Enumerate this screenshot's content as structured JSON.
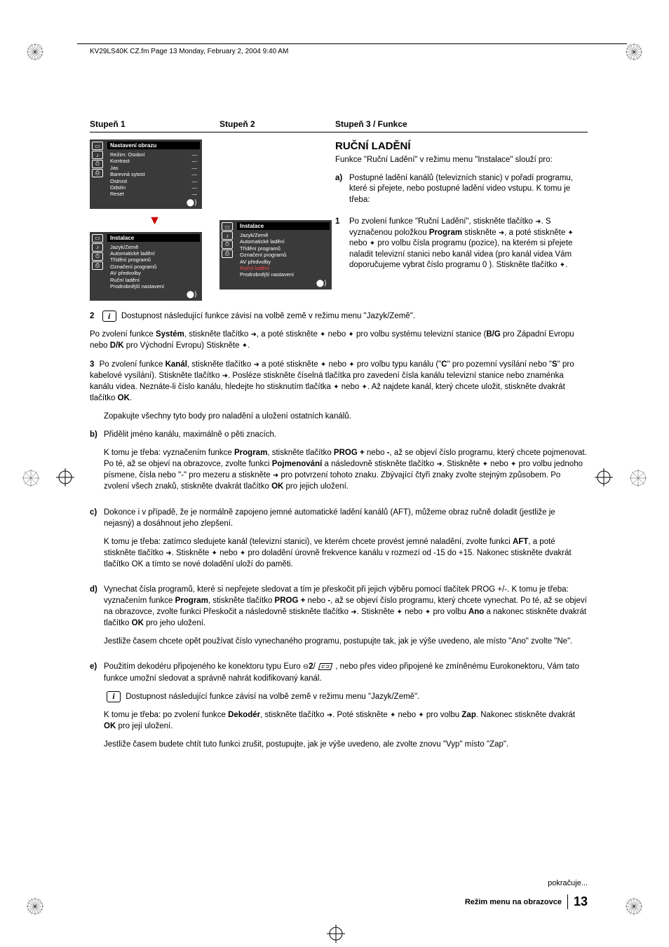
{
  "header_line": "KV29LS40K CZ.fm  Page 13  Monday, February 2, 2004  9:40 AM",
  "columns": {
    "c1": "Stupeň 1",
    "c2": "Stupeň 2",
    "c3": "Stupeň 3 / Funkce"
  },
  "menu1": {
    "title": "Nastavení  obrazu",
    "items": [
      "Režim: Osobní",
      "Kontrast",
      "Jas",
      "Barevná sytost",
      "Ostrost",
      "Odstín",
      "Reset"
    ]
  },
  "menu2": {
    "title": "Instalace",
    "items": [
      "Jazyk/Země",
      "Automatické ladění",
      "Třídění  programů",
      "Označení programů",
      "AV předvolby",
      "Ruční ladění",
      "Prodrobnější nastavení"
    ]
  },
  "menu3": {
    "title": "Instalace",
    "items": [
      "Jazyk/Země",
      "Automatické ladění",
      "Třídění  programů",
      "Označení programů",
      "AV předvolby",
      "Ruční ladění",
      "Prodrobnější nastavení"
    ],
    "highlight_index": 5
  },
  "manual": {
    "heading": "RUČNÍ LADĚNÍ",
    "intro": "Funkce \"Ruční Ladění\" v režimu menu \"Instalace\" slouží pro:",
    "a_label": "a)",
    "a_text": "Postupné ladění kanálů (televizních stanic) v pořadí programu, které si přejete, nebo postupné ladění video vstupu. K tomu je třeba:",
    "step1_label": "1",
    "step1_text_a": "Po zvolení funkce \"Ruční Ladění\", stiskněte tlačítko ",
    "step1_text_b": ". S vyznačenou položkou ",
    "step1_prog": "Program",
    "step1_text_c": " stiskněte ",
    "step1_text_d": ", a poté stiskněte ",
    "step1_text_e": " nebo ",
    "step1_text_f": " pro volbu čísla programu (pozice), na kterém si přejete naladit televizní stanici nebo kanál videa (pro kanál videa Vám doporučujeme vybrat číslo programu 0 ). Stiskněte tlačítko ",
    "step1_text_g": "."
  },
  "step2": {
    "label": "2",
    "text": "Dostupnost následující funkce závisí na volbě země v režimu menu \"Jazyk/Země\"."
  },
  "para_system_a": "Po zvolení funkce ",
  "para_system_b": "Systém",
  "para_system_c": ", stiskněte tlačítko ",
  "para_system_d": ", a poté stiskněte ",
  "para_system_e": " nebo ",
  "para_system_f": " pro volbu systému televizní stanice (",
  "para_system_g": "B/G",
  "para_system_h": " pro Západní Evropu nebo ",
  "para_system_i": "D/K",
  "para_system_j": " pro Východní Evropu) Stiskněte ",
  "para_system_k": ".",
  "step3": {
    "label": "3",
    "a": "Po zvolení funkce ",
    "kanal": "Kanál",
    "b": ", stiskněte tlačítko ",
    "c": " a poté stiskněte ",
    "d": " nebo ",
    "e": " pro volbu typu kanálu (\"",
    "cC": "C",
    "f": "\"  pro pozemní vysílání nebo \"",
    "cS": "S",
    "g": "\" pro kabelové vysílání). Stiskněte tlačítko ",
    "h": ". Posléze stiskněte číselná tlačítka pro zavedení čísla kanálu televizní stanice nebo znaménka kanálu videa. Neznáte-li číslo kanálu, hledejte ho stisknutím tlačítka ",
    "i": " nebo ",
    "j": ". Až najdete kanál, který chcete uložit, stiskněte dvakrát tlačítko ",
    "ok": "OK",
    "k": "."
  },
  "repeat": "Zopakujte všechny tyto body pro naladění a uložení ostatních kanálů.",
  "b": {
    "label": "b)",
    "line1": "Přidělit jméno kanálu, maximálně o pěti znacích.",
    "p2a": "K tomu je třeba: vyznačením funkce ",
    "prog": "Program",
    "p2b": ", stiskněte tlačítko ",
    "progplus": "PROG +",
    "p2c": " nebo ",
    "minus": "-",
    "p2d": ", až se objeví číslo programu, který chcete pojmenovat. Po té, až se objeví na obrazovce, zvolte funkci ",
    "pojmen": "Pojmenování",
    "p2e": " a následovně stiskněte tlačítko ",
    "p2f": ". Stiskněte ",
    "p2g": " nebo ",
    "p2h": " pro volbu jednoho písmene, čísla nebo \"-\" pro mezeru a stiskněte ",
    "p2i": " pro potvrzení tohoto znaku. Zbývající čtyři znaky zvolte stejným způsobem.  Po zvolení všech znaků, stiskněte dvakrát tlačítko ",
    "ok": "OK",
    "p2j": " pro jejich uložení."
  },
  "c": {
    "label": "c)",
    "p1": "Dokonce i v případě, že je normálně zapojeno jemné automatické ladění kanálů (AFT), můžeme obraz ručně doladit (jestliže je nejasný) a dosáhnout jeho zlepšení.",
    "p2a": "K tomu je třeba: zatímco sledujete kanál (televizní stanici), ve kterém chcete provést jemné naladění, zvolte funkci ",
    "aft": "AFT",
    "p2b": ", a poté stiskněte tlačítko ",
    "p2c": ". Stiskněte ",
    "p2d": " nebo ",
    "p2e": " pro doladění úrovně frekvence kanálu v rozmezí od -15 do +15. Nakonec stiskněte dvakrát tlačítko OK a tímto se nové doladění uloží do paměti."
  },
  "d": {
    "label": "d)",
    "p1a": "Vynechat čísla programů, které si nepřejete sledovat a tím je přeskočit při jejich výběru pomocí tlačítek PROG +/-. K tomu je třeba: vyznačením funkce ",
    "prog": "Program",
    "p1b": ", stiskněte tlačítko ",
    "progplus": "PROG +",
    "p1c": " nebo ",
    "minus": "-",
    "p1d": ", až se objeví číslo programu, který chcete vynechat. Po té, až se objeví na obrazovce, zvolte funkci Přeskočit a následovně stiskněte tlačítko ",
    "p1e": ". Stiskněte ",
    "p1f": " nebo ",
    "p1g": " pro volbu ",
    "ano": "Ano",
    "p1h": " a nakonec stiskněte dvakrát tlačítko ",
    "ok": "OK",
    "p1i": " pro jeho uložení.",
    "p2": "Jestliže časem chcete opět používat číslo vynechaného programu, postupujte tak, jak je výše uvedeno, ale místo \"Ano\" zvolte \"Ne\"."
  },
  "e": {
    "label": "e)",
    "p1a": "Použitím dekodéru připojeného ke konektoru typu Euro ",
    "scart2": "2",
    "p1b": "/ ",
    "p1c": " , nebo přes video připojené ke zmíněnému Eurokonektoru, Vám tato funkce umožní sledovat a správně nahrát kodifikovaný kanál.",
    "info": "Dostupnost následující funkce závisí na volbě země v režimu menu \"Jazyk/Země\".",
    "p2a": "K tomu je třeba: po zvolení funkce ",
    "dekoder": "Dekodér",
    "p2b": ", stiskněte tlačítko ",
    "p2c": ". Poté stiskněte ",
    "p2d": " nebo ",
    "p2e": " pro volbu ",
    "zap": "Zap",
    "p2f": ". Nakonec stiskněte dvakrát ",
    "ok": "OK",
    "p2g": " pro její uložení.",
    "p3": "Jestliže časem budete chtít tuto funkci zrušit, postupujte, jak je výše uvedeno, ale zvolte znovu \"Vyp\" místo \"Zap\"."
  },
  "continues": "pokračuje...",
  "footer_title": "Režim menu na obrazovce",
  "page_number": "13",
  "colors": {
    "highlight": "#ff4444",
    "red_arrow": "#cc0000",
    "menu_bg": "#3a3a3a"
  }
}
